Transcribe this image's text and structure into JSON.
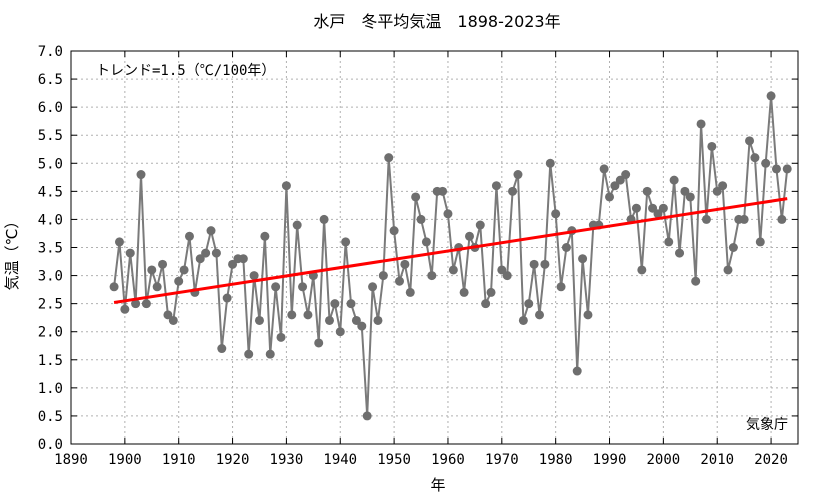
{
  "chart_data": {
    "type": "line",
    "title": "水戸　冬平均気温　1898-2023年",
    "xlabel": "年",
    "ylabel": "気温（℃）",
    "xlim": [
      1890,
      2025
    ],
    "ylim": [
      0.0,
      7.0
    ],
    "xticks": [
      1890,
      1900,
      1910,
      1920,
      1930,
      1940,
      1950,
      1960,
      1970,
      1980,
      1990,
      2000,
      2010,
      2020
    ],
    "yticks": [
      "0.0",
      "0.5",
      "1.0",
      "1.5",
      "2.0",
      "2.5",
      "3.0",
      "3.5",
      "4.0",
      "4.5",
      "5.0",
      "5.5",
      "6.0",
      "6.5",
      "7.0"
    ],
    "grid": true,
    "trend_label": "トレンド=1.5（℃/100年）",
    "source_label": "気象庁",
    "series": [
      {
        "color": "#7a7a7a",
        "marker_color": "#6e6e6e",
        "x_start": 1898,
        "values": [
          2.8,
          3.6,
          2.4,
          3.4,
          2.5,
          4.8,
          2.5,
          3.1,
          2.8,
          3.2,
          2.3,
          2.2,
          2.9,
          3.1,
          3.7,
          2.7,
          3.3,
          3.4,
          3.8,
          3.4,
          1.7,
          2.6,
          3.2,
          3.3,
          3.3,
          1.6,
          3.0,
          2.2,
          3.7,
          1.6,
          2.8,
          1.9,
          4.6,
          2.3,
          3.9,
          2.8,
          2.3,
          3.0,
          1.8,
          4.0,
          2.2,
          2.5,
          2.0,
          3.6,
          2.5,
          2.2,
          2.1,
          0.5,
          2.8,
          2.2,
          3.0,
          5.1,
          3.8,
          2.9,
          3.2,
          2.7,
          4.4,
          4.0,
          3.6,
          3.0,
          4.5,
          4.5,
          4.1,
          3.1,
          3.5,
          2.7,
          3.7,
          3.5,
          3.9,
          2.5,
          2.7,
          4.6,
          3.1,
          3.0,
          4.5,
          4.8,
          2.2,
          2.5,
          3.2,
          2.3,
          3.2,
          5.0,
          4.1,
          2.8,
          3.5,
          3.8,
          1.3,
          3.3,
          2.3,
          3.9,
          3.9,
          4.9,
          4.4,
          4.6,
          4.7,
          4.8,
          4.0,
          4.2,
          3.1,
          4.5,
          4.2,
          4.1,
          4.2,
          3.6,
          4.7,
          3.4,
          4.5,
          4.4,
          2.9,
          5.7,
          4.0,
          5.3,
          4.5,
          4.6,
          3.1,
          3.5,
          4.0,
          4.0,
          5.4,
          5.1,
          3.6,
          5.0,
          6.2,
          4.9,
          4.0,
          4.9
        ]
      }
    ],
    "trend": {
      "color": "#ff0000",
      "x": [
        1898,
        2023
      ],
      "y": [
        2.52,
        4.37
      ]
    }
  }
}
